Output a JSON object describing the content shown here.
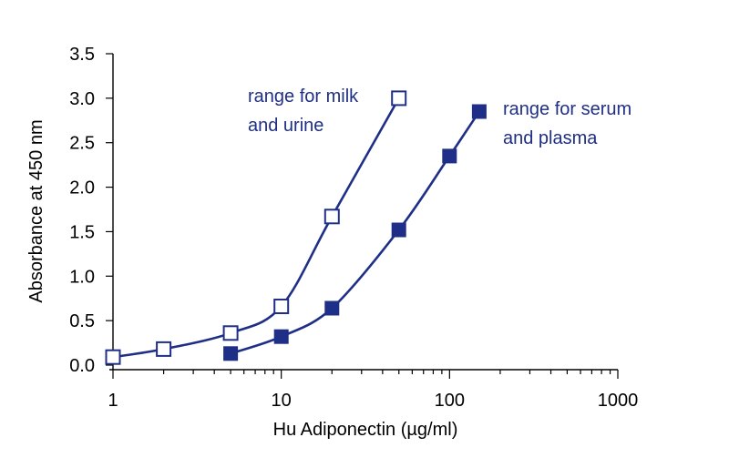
{
  "chart_data": {
    "type": "scatter",
    "xscale": "log",
    "xlim": [
      1,
      1000
    ],
    "ylim": [
      0,
      3.5
    ],
    "xlabel": "Hu Adiponectin (µg/ml)",
    "ylabel": "Absorbance at 450 nm",
    "xticks": [
      "1",
      "10",
      "100",
      "1000"
    ],
    "yticks": [
      "0.0",
      "0.5",
      "1.0",
      "1.5",
      "2.0",
      "2.5",
      "3.0",
      "3.5"
    ],
    "grid": false,
    "series": [
      {
        "marker": "open-square",
        "color": "#1f2f87",
        "x": [
          1,
          2,
          5,
          10,
          20,
          50
        ],
        "y": [
          0.09,
          0.18,
          0.36,
          0.66,
          1.67,
          3.0
        ]
      },
      {
        "marker": "filled-square",
        "color": "#1f2f87",
        "x": [
          5,
          10,
          20,
          50,
          100,
          150
        ],
        "y": [
          0.13,
          0.32,
          0.64,
          1.52,
          2.35,
          2.85
        ]
      }
    ],
    "annotations": [
      {
        "lines": [
          "range for milk",
          "and urine"
        ],
        "near_series": 0
      },
      {
        "lines": [
          "range for serum",
          "and plasma"
        ],
        "near_series": 1
      }
    ]
  }
}
